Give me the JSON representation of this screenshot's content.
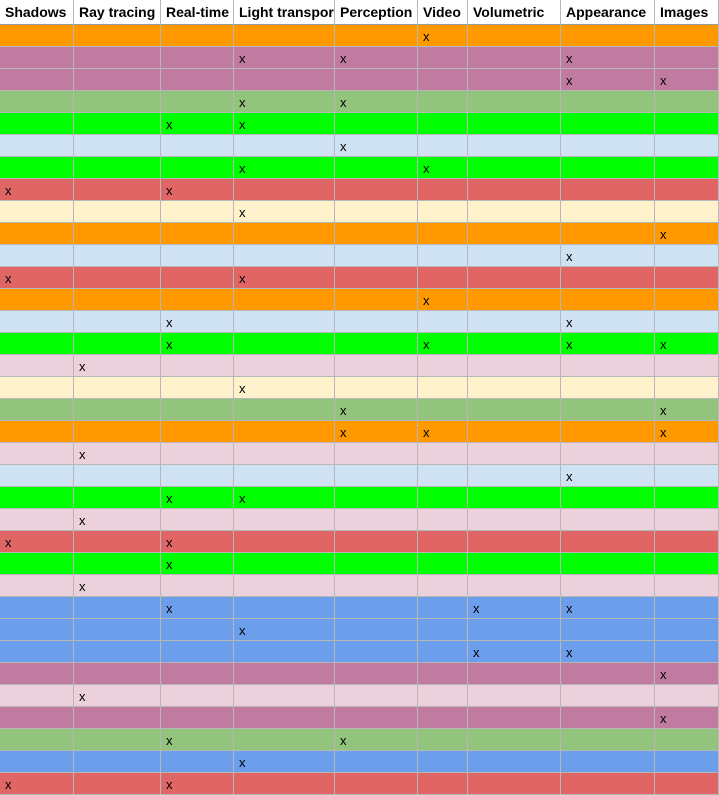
{
  "table": {
    "columns": [
      "Shadows",
      "Ray tracing",
      "Real-time",
      "Light transpor",
      "Perception",
      "Video",
      "Volumetric",
      "Appearance",
      "Images"
    ],
    "rows": [
      {
        "color": "#ff9900",
        "cells": [
          null,
          null,
          null,
          null,
          null,
          "x",
          null,
          null,
          null
        ]
      },
      {
        "color": "#c27ba0",
        "cells": [
          null,
          null,
          null,
          "x",
          "x",
          null,
          null,
          "x",
          null
        ]
      },
      {
        "color": "#c27ba0",
        "cells": [
          null,
          null,
          null,
          null,
          null,
          null,
          null,
          "x",
          "x"
        ]
      },
      {
        "color": "#93c47d",
        "cells": [
          null,
          null,
          null,
          "x",
          "x",
          null,
          null,
          null,
          null
        ]
      },
      {
        "color": "#00ff00",
        "cells": [
          null,
          null,
          "x",
          "x",
          null,
          null,
          null,
          null,
          null
        ]
      },
      {
        "color": "#cfe2f3",
        "cells": [
          null,
          null,
          null,
          null,
          "x",
          null,
          null,
          null,
          null
        ]
      },
      {
        "color": "#00ff00",
        "cells": [
          null,
          null,
          null,
          "x",
          null,
          "x",
          null,
          null,
          null
        ]
      },
      {
        "color": "#e06666",
        "cells": [
          "x",
          null,
          "x",
          null,
          null,
          null,
          null,
          null,
          null
        ]
      },
      {
        "color": "#fff2cc",
        "cells": [
          null,
          null,
          null,
          "x",
          null,
          null,
          null,
          null,
          null
        ]
      },
      {
        "color": "#ff9900",
        "cells": [
          null,
          null,
          null,
          null,
          null,
          null,
          null,
          null,
          "x"
        ]
      },
      {
        "color": "#cfe2f3",
        "cells": [
          null,
          null,
          null,
          null,
          null,
          null,
          null,
          "x",
          null
        ]
      },
      {
        "color": "#e06666",
        "cells": [
          "x",
          null,
          null,
          "x",
          null,
          null,
          null,
          null,
          null
        ]
      },
      {
        "color": "#ff9900",
        "cells": [
          null,
          null,
          null,
          null,
          null,
          "x",
          null,
          null,
          null
        ]
      },
      {
        "color": "#cfe2f3",
        "cells": [
          null,
          null,
          "x",
          null,
          null,
          null,
          null,
          "x",
          null
        ]
      },
      {
        "color": "#00ff00",
        "cells": [
          null,
          null,
          "x",
          null,
          null,
          "x",
          null,
          "x",
          "x"
        ]
      },
      {
        "color": "#ead1dc",
        "cells": [
          null,
          "x",
          null,
          null,
          null,
          null,
          null,
          null,
          null
        ]
      },
      {
        "color": "#fff2cc",
        "cells": [
          null,
          null,
          null,
          "x",
          null,
          null,
          null,
          null,
          null
        ]
      },
      {
        "color": "#93c47d",
        "cells": [
          null,
          null,
          null,
          null,
          "x",
          null,
          null,
          null,
          "x"
        ]
      },
      {
        "color": "#ff9900",
        "cells": [
          null,
          null,
          null,
          null,
          "x",
          "x",
          null,
          null,
          "x"
        ]
      },
      {
        "color": "#ead1dc",
        "cells": [
          null,
          "x",
          null,
          null,
          null,
          null,
          null,
          null,
          null
        ]
      },
      {
        "color": "#cfe2f3",
        "cells": [
          null,
          null,
          null,
          null,
          null,
          null,
          null,
          "x",
          null
        ]
      },
      {
        "color": "#00ff00",
        "cells": [
          null,
          null,
          "x",
          "x",
          null,
          null,
          null,
          null,
          null
        ]
      },
      {
        "color": "#ead1dc",
        "cells": [
          null,
          "x",
          null,
          null,
          null,
          null,
          null,
          null,
          null
        ]
      },
      {
        "color": "#e06666",
        "cells": [
          "x",
          null,
          "x",
          null,
          null,
          null,
          null,
          null,
          null
        ]
      },
      {
        "color": "#00ff00",
        "cells": [
          null,
          null,
          "x",
          null,
          null,
          null,
          null,
          null,
          null
        ]
      },
      {
        "color": "#ead1dc",
        "cells": [
          null,
          "x",
          null,
          null,
          null,
          null,
          null,
          null,
          null
        ]
      },
      {
        "color": "#6d9eeb",
        "cells": [
          null,
          null,
          "x",
          null,
          null,
          null,
          "x",
          "x",
          null
        ]
      },
      {
        "color": "#6d9eeb",
        "cells": [
          null,
          null,
          null,
          "x",
          null,
          null,
          null,
          null,
          null
        ]
      },
      {
        "color": "#6d9eeb",
        "cells": [
          null,
          null,
          null,
          null,
          null,
          null,
          "x",
          "x",
          null
        ]
      },
      {
        "color": "#c27ba0",
        "cells": [
          null,
          null,
          null,
          null,
          null,
          null,
          null,
          null,
          "x"
        ]
      },
      {
        "color": "#ead1dc",
        "cells": [
          null,
          "x",
          null,
          null,
          null,
          null,
          null,
          null,
          null
        ]
      },
      {
        "color": "#c27ba0",
        "cells": [
          null,
          null,
          null,
          null,
          null,
          null,
          null,
          null,
          "x"
        ]
      },
      {
        "color": "#93c47d",
        "cells": [
          null,
          null,
          "x",
          null,
          "x",
          null,
          null,
          null,
          null
        ]
      },
      {
        "color": "#6d9eeb",
        "cells": [
          null,
          null,
          null,
          "x",
          null,
          null,
          null,
          null,
          null
        ]
      },
      {
        "color": "#e06666",
        "cells": [
          "x",
          null,
          "x",
          null,
          null,
          null,
          null,
          null,
          null
        ]
      }
    ]
  }
}
